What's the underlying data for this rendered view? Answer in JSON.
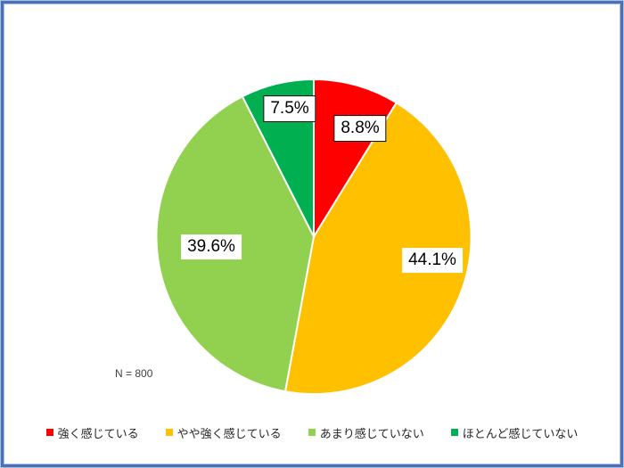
{
  "frame": {
    "border_color": "#4a70b8",
    "border_light": "#a9c0e0",
    "background": "#ffffff"
  },
  "chart_data": {
    "type": "pie",
    "title": "",
    "n_label": "N = 800",
    "total": 100,
    "start_angle_deg": 0,
    "direction": "clockwise",
    "legend_position": "bottom",
    "slices": [
      {
        "label": "強く感じている",
        "value": 8.8,
        "display": "8.8%",
        "color": "#FF0000",
        "boxed_label": true
      },
      {
        "label": "やや強く感じている",
        "value": 44.1,
        "display": "44.1%",
        "color": "#FFC000",
        "boxed_label": false
      },
      {
        "label": "あまり感じていない",
        "value": 39.6,
        "display": "39.6%",
        "color": "#92D050",
        "boxed_label": false
      },
      {
        "label": "ほとんど感じていない",
        "value": 7.5,
        "display": "7.5%",
        "color": "#00B050",
        "boxed_label": true
      }
    ]
  }
}
